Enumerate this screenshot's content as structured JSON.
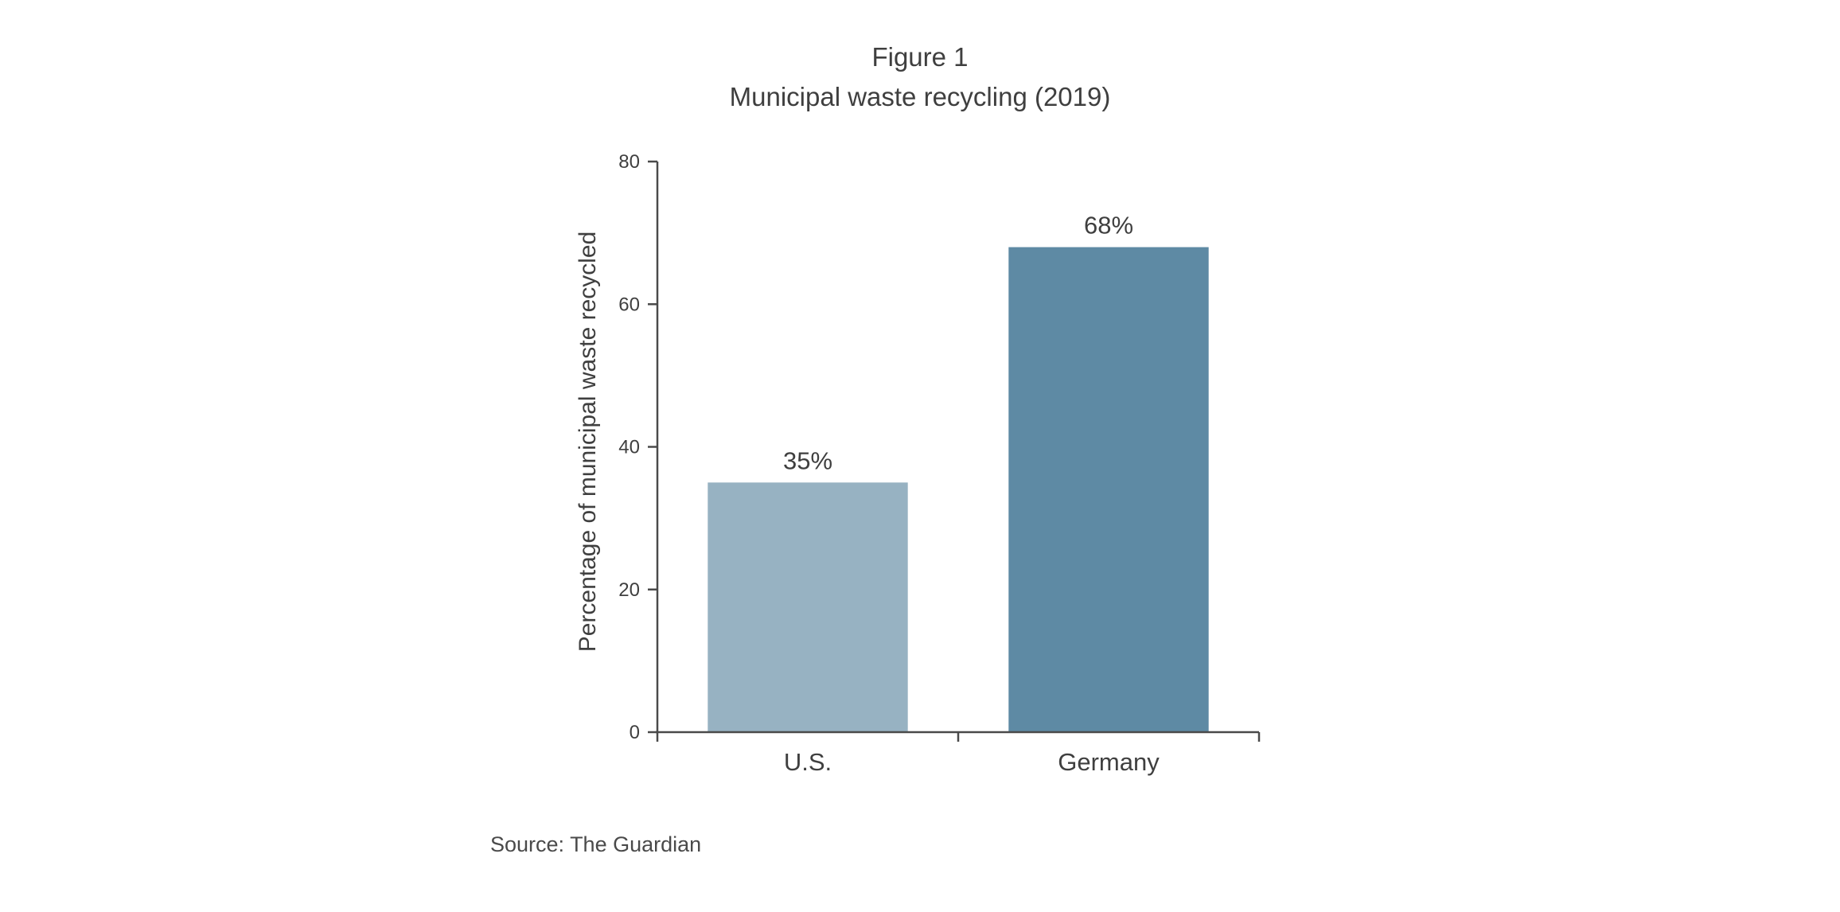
{
  "figure_label": "Figure 1",
  "source": "Source: The Guardian",
  "chart_data": {
    "type": "bar",
    "title": "Municipal waste recycling (2019)",
    "xlabel": "",
    "ylabel": "Percentage of municipal waste recycled",
    "categories": [
      "U.S.",
      "Germany"
    ],
    "values": [
      35,
      68
    ],
    "value_labels": [
      "35%",
      "68%"
    ],
    "ylim": [
      0,
      80
    ],
    "yticks": [
      0,
      20,
      40,
      60,
      80
    ],
    "ytick_labels": [
      "0",
      "20",
      "40",
      "60",
      "80"
    ],
    "bar_colors": [
      "#97b2c2",
      "#5e8aa4"
    ],
    "axis_color": "#4a4a4a",
    "grid": false,
    "legend": "none"
  }
}
